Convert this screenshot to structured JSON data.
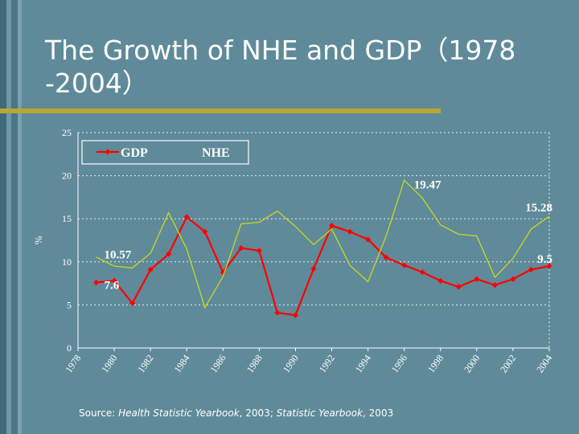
{
  "slide": {
    "title": "The Growth of NHE and GDP（1978 -2004）",
    "source_prefix": "Source: ",
    "source_book1": "Health Statistic Yearbook",
    "source_mid": ", 2003; ",
    "source_book2": "Statistic Yearbook",
    "source_suffix": ", 2003"
  },
  "colors": {
    "background": "#5f8a99",
    "stripe_dark": "#3d6b7c",
    "stripe_light": "#7aa0ac",
    "accent_rule": "#b8a832",
    "gdp": "#ff0000",
    "nhe": "#c8d820"
  },
  "chart_data": {
    "type": "line",
    "ylabel": "%",
    "ylim": [
      0,
      25
    ],
    "yticks": [
      0,
      5,
      10,
      15,
      20,
      25
    ],
    "x": [
      1978,
      1979,
      1980,
      1981,
      1982,
      1983,
      1984,
      1985,
      1986,
      1987,
      1988,
      1989,
      1990,
      1991,
      1992,
      1993,
      1994,
      1995,
      1996,
      1997,
      1998,
      1999,
      2000,
      2001,
      2002,
      2003,
      2004
    ],
    "xticks": [
      "1978",
      "1980",
      "1982",
      "1984",
      "1986",
      "1988",
      "1990",
      "1992",
      "1994",
      "1996",
      "1998",
      "2000",
      "2002",
      "2004"
    ],
    "grid": "horizontal dotted",
    "legend_position": "top-left",
    "series": [
      {
        "name": "GDP",
        "color": "#ff0000",
        "marker": "diamond",
        "values": [
          null,
          7.6,
          7.8,
          5.2,
          9.1,
          10.9,
          15.2,
          13.5,
          8.8,
          11.6,
          11.3,
          4.1,
          3.8,
          9.2,
          14.2,
          13.5,
          12.6,
          10.5,
          9.6,
          8.8,
          7.8,
          7.1,
          8.0,
          7.3,
          8.0,
          9.1,
          9.5
        ]
      },
      {
        "name": "NHE",
        "color": "#c8d820",
        "marker": "none",
        "values": [
          null,
          10.57,
          9.5,
          9.3,
          11.0,
          15.7,
          11.5,
          4.7,
          8.3,
          14.4,
          14.6,
          15.9,
          14.1,
          12.0,
          13.8,
          9.6,
          7.7,
          13.0,
          19.47,
          17.4,
          14.3,
          13.2,
          13.0,
          8.2,
          10.4,
          13.8,
          15.28
        ]
      }
    ],
    "annotations": [
      {
        "text": "19.47",
        "year": 1996,
        "value": 19.47,
        "series": "NHE"
      },
      {
        "text": "15.28",
        "year": 2004,
        "value": 15.28,
        "series": "NHE"
      },
      {
        "text": "10.57",
        "year": 1979,
        "value": 10.57,
        "series": "NHE"
      },
      {
        "text": "7.6",
        "year": 1979,
        "value": 7.6,
        "series": "GDP"
      },
      {
        "text": "9.5",
        "year": 2004,
        "value": 9.5,
        "series": "GDP"
      }
    ]
  }
}
